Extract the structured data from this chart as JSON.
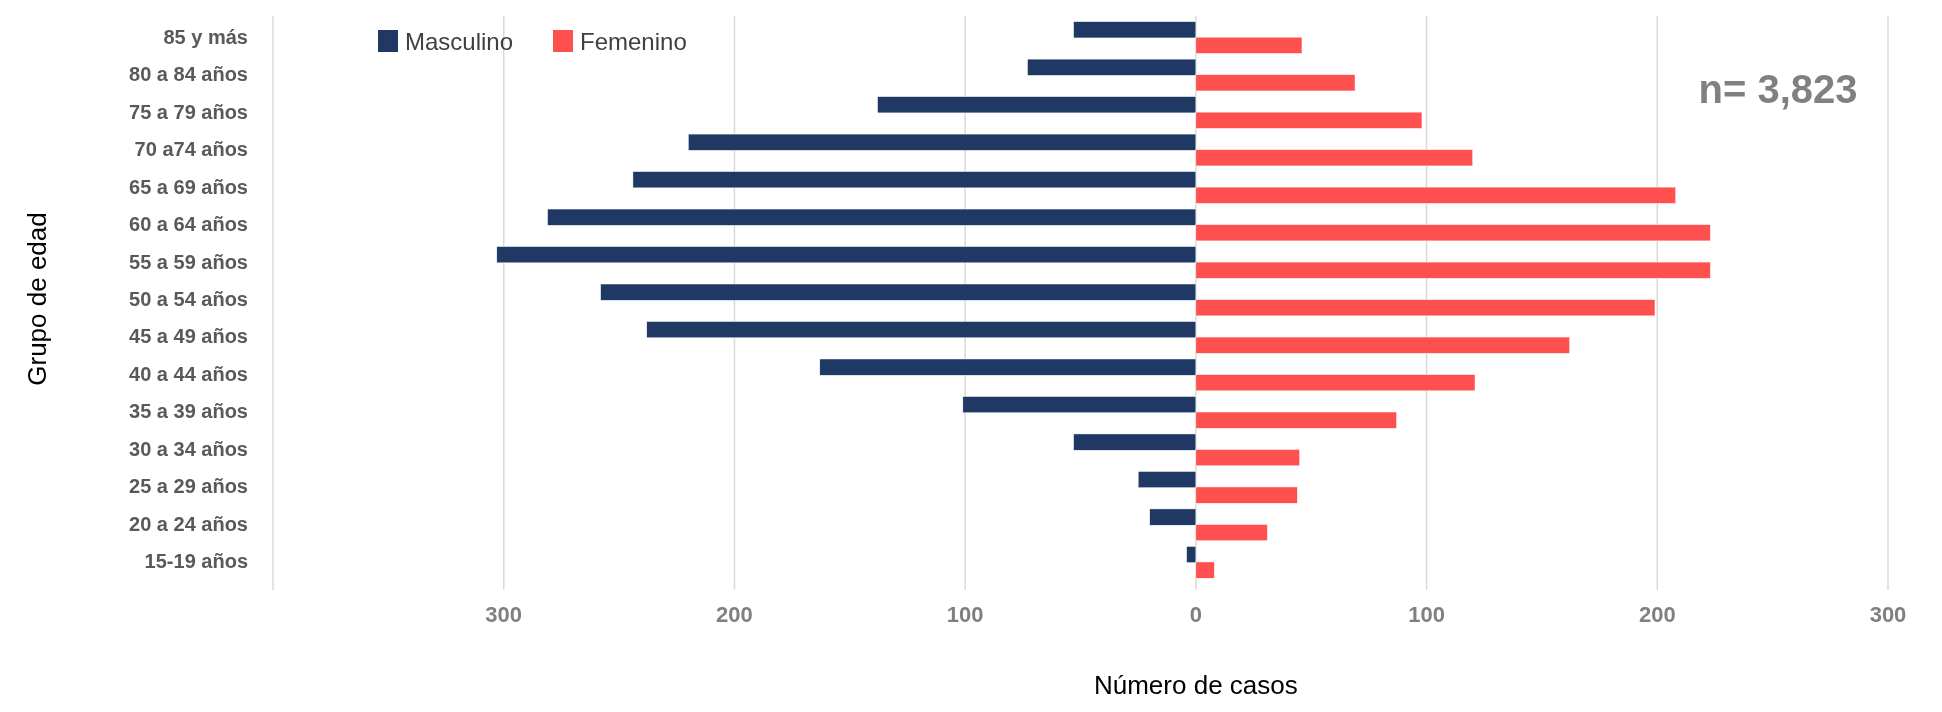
{
  "chart_data": {
    "type": "bar",
    "orientation": "horizontal",
    "ylabel": "Grupo de edad",
    "xlabel": "Número de casos",
    "categories": [
      "85 y más",
      "80 a 84 años",
      "75 a 79 años",
      "70 a74 años",
      "65 a 69 años",
      "60 a 64 años",
      "55 a 59 años",
      "50 a 54 años",
      "45 a 49 años",
      "40 a 44 años",
      "35 a 39 años",
      "30 a 34 años",
      "25 a 29 años",
      "20 a 24 años",
      "15-19 años"
    ],
    "series": [
      {
        "name": "Masculino",
        "color": "#1f3864",
        "values": [
          -53,
          -73,
          -138,
          -220,
          -244,
          -281,
          -303,
          -258,
          -238,
          -163,
          -101,
          -53,
          -25,
          -20,
          -4
        ]
      },
      {
        "name": "Femenino",
        "color": "#ff5050",
        "values": [
          46,
          69,
          98,
          120,
          208,
          223,
          223,
          199,
          162,
          121,
          87,
          45,
          44,
          31,
          8
        ]
      }
    ],
    "xlim": [
      -400,
      300
    ],
    "xticks": [
      {
        "value": -400,
        "label": null
      },
      {
        "value": -300,
        "label": "300"
      },
      {
        "value": -200,
        "label": "200"
      },
      {
        "value": -100,
        "label": "100"
      },
      0,
      100,
      200,
      300
    ],
    "grid": "x",
    "legend": "top left",
    "annotations": [
      "n= 3,823"
    ]
  }
}
